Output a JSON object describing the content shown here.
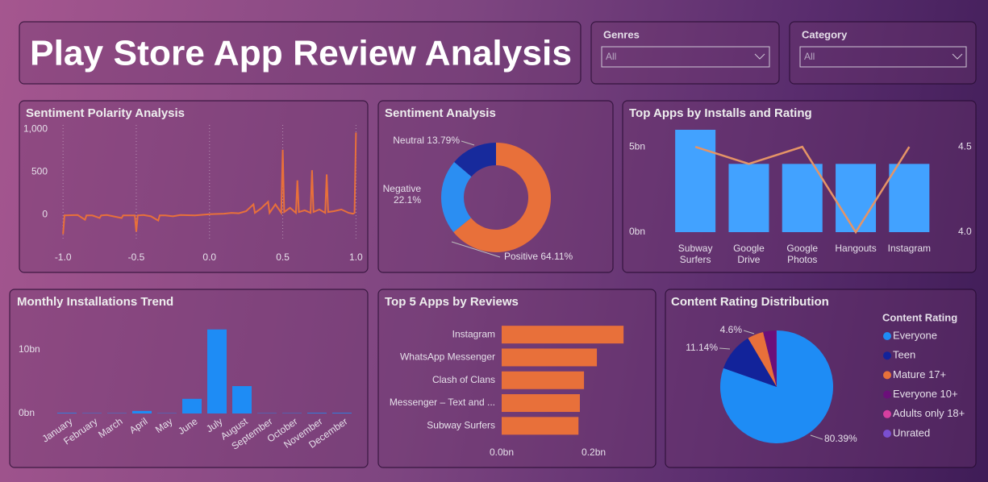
{
  "header": {
    "title": "Play Store App Review Analysis"
  },
  "filters": [
    {
      "label": "Genres",
      "value": "All"
    },
    {
      "label": "Category",
      "value": "All"
    }
  ],
  "chart_data": [
    {
      "type": "line",
      "title": "Sentiment Polarity Analysis",
      "color": "#e8703a",
      "x": [
        -1.0,
        -0.99,
        -0.9,
        -0.85,
        -0.84,
        -0.8,
        -0.75,
        -0.74,
        -0.7,
        -0.6,
        -0.59,
        -0.55,
        -0.51,
        -0.5,
        -0.49,
        -0.45,
        -0.4,
        -0.35,
        -0.34,
        -0.3,
        -0.25,
        -0.2,
        -0.1,
        0.0,
        0.1,
        0.15,
        0.2,
        0.25,
        0.3,
        0.31,
        0.35,
        0.4,
        0.41,
        0.45,
        0.49,
        0.5,
        0.51,
        0.55,
        0.59,
        0.6,
        0.61,
        0.65,
        0.69,
        0.7,
        0.71,
        0.75,
        0.79,
        0.8,
        0.81,
        0.85,
        0.9,
        0.95,
        0.98,
        0.99,
        1.0
      ],
      "values": [
        -230,
        -10,
        -5,
        -60,
        -10,
        -10,
        -40,
        -10,
        -5,
        -40,
        -10,
        -10,
        -10,
        -200,
        -10,
        -5,
        -20,
        -70,
        -10,
        -10,
        -20,
        -5,
        -10,
        5,
        10,
        20,
        15,
        40,
        120,
        20,
        70,
        150,
        20,
        120,
        20,
        760,
        30,
        80,
        20,
        400,
        30,
        50,
        20,
        520,
        30,
        60,
        20,
        470,
        30,
        40,
        60,
        20,
        10,
        20,
        960
      ],
      "xlim": [
        -1.1,
        1.02
      ],
      "ylim": [
        -300,
        1050
      ],
      "xticks": [
        {
          "value": -1,
          "label": "-1.0"
        },
        {
          "value": -0.5,
          "label": "-0.5"
        },
        {
          "value": 0,
          "label": "0.0"
        },
        0.5,
        {
          "value": 1,
          "label": "1.0"
        }
      ],
      "yticks": [
        0,
        500,
        {
          "value": 1000,
          "label": "1,000"
        }
      ],
      "grid": true
    },
    {
      "type": "donut",
      "title": "Sentiment Analysis",
      "categories": [
        "Positive",
        "Negative",
        "Neutral"
      ],
      "values": [
        64.11,
        22.1,
        13.79
      ],
      "value_labels": [
        "64.11%",
        "22.1%",
        "13.79%"
      ],
      "colors": [
        "#e8703a",
        "#2b8ef2",
        "#172a9c"
      ]
    },
    {
      "type": "bar-line",
      "title": "Top Apps by Installs and Rating",
      "categories": [
        "Subway Surfers",
        "Google Drive",
        "Google Photos",
        "Hangouts",
        "Instagram"
      ],
      "series": [
        {
          "color": "#42a2ff",
          "values": [
            6000000000,
            4000000000,
            4000000000,
            4000000000,
            4000000000
          ]
        },
        {
          "color": "#e59466",
          "axis": "y2",
          "values": [
            4.5,
            4.4,
            4.5,
            4.0,
            4.5
          ]
        }
      ],
      "ylim": [
        0,
        6000000000
      ],
      "yticks": [
        {
          "value": 0,
          "label": "0bn"
        },
        {
          "value": 5000000000,
          "label": "5bn"
        }
      ],
      "y2lim": [
        4.0,
        4.6
      ],
      "y2ticks": [
        {
          "value": 4,
          "label": "4.0"
        },
        4.5
      ]
    },
    {
      "type": "bar",
      "title": "Monthly Installations Trend",
      "color": "#1e8cf5",
      "categories": [
        "January",
        "February",
        "March",
        "April",
        "May",
        "June",
        "July",
        "August",
        "September",
        "October",
        "November",
        "December"
      ],
      "values": [
        100000000,
        50000000,
        50000000,
        400000000,
        50000000,
        2300000000,
        13200000000,
        4300000000,
        50000000,
        50000000,
        100000000,
        100000000
      ],
      "ylim": [
        0,
        14000000000
      ],
      "yticks": [
        {
          "value": 0,
          "label": "0bn"
        },
        {
          "value": 10000000000,
          "label": "10bn"
        }
      ]
    },
    {
      "type": "hbar",
      "title": "Top 5 Apps by Reviews",
      "color": "#e8703a",
      "categories": [
        "Instagram",
        "WhatsApp Messenger",
        "Clash of Clans",
        "Messenger – Text and ...",
        "Subway Surfers"
      ],
      "values": [
        265000000,
        207000000,
        179000000,
        170000000,
        167000000
      ],
      "xlim": [
        0,
        270000000
      ],
      "xticks": [
        {
          "value": 0,
          "label": "0.0bn"
        },
        {
          "value": 200000000,
          "label": "0.2bn"
        }
      ]
    },
    {
      "type": "pie",
      "title": "Content Rating Distribution",
      "legend_title": "Content Rating",
      "legend": "right",
      "categories": [
        "Everyone",
        "Teen",
        "Mature 17+",
        "Everyone 10+",
        "Adults only 18+",
        "Unrated"
      ],
      "values": [
        80.39,
        11.14,
        4.6,
        3.83,
        0.02,
        0.02
      ],
      "value_labels": [
        "80.39%",
        "11.14%",
        "4.6%",
        null,
        null,
        null
      ],
      "colors": [
        "#1e8cf5",
        "#12239a",
        "#e8703a",
        "#6b0f7a",
        "#d63fa0",
        "#7a4fd0"
      ]
    }
  ]
}
